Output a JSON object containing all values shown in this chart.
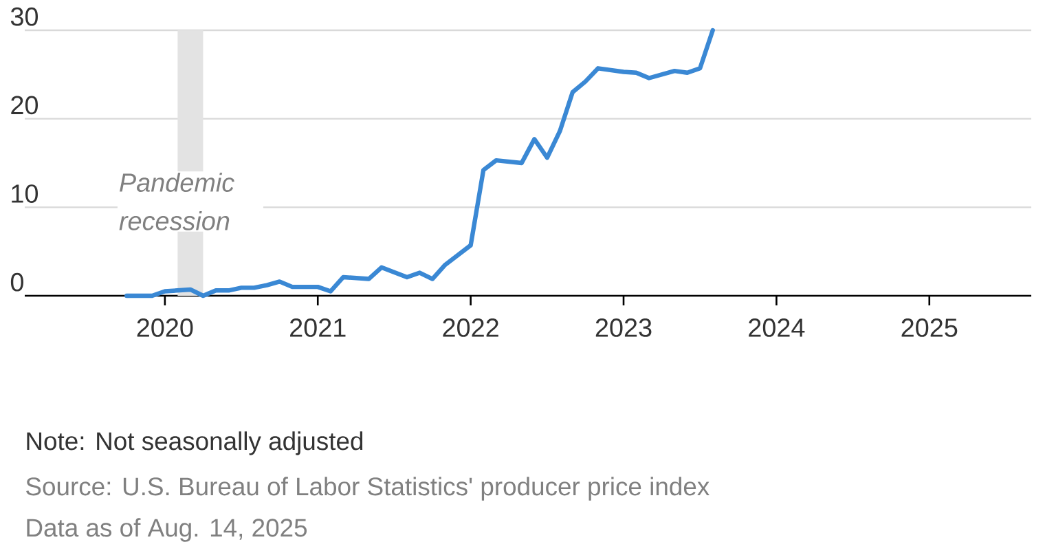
{
  "chart_data": {
    "type": "line",
    "color": "#3a88d4",
    "x": [
      "2019-10",
      "2019-12",
      "2020-01",
      "2020-03",
      "2020-04",
      "2020-05",
      "2020-06",
      "2020-07",
      "2020-08",
      "2020-09",
      "2020-10",
      "2020-11",
      "2021-01",
      "2021-02",
      "2021-03",
      "2021-05",
      "2021-06",
      "2021-08",
      "2021-09",
      "2021-10",
      "2021-11",
      "2022-01",
      "2022-02",
      "2022-03",
      "2022-05",
      "2022-06",
      "2022-07",
      "2022-08",
      "2022-09",
      "2022-10",
      "2022-11",
      "2023-01",
      "2023-02",
      "2023-03",
      "2023-05",
      "2023-06",
      "2023-07",
      "2023-08"
    ],
    "values": [
      0,
      0,
      0.5,
      0.7,
      0,
      0.6,
      0.6,
      0.9,
      0.9,
      1.2,
      1.6,
      1.0,
      1.0,
      0.5,
      2.1,
      1.9,
      3.2,
      2.1,
      2.6,
      1.9,
      3.5,
      5.7,
      14.2,
      15.3,
      15.0,
      17.7,
      15.6,
      18.6,
      23.0,
      24.2,
      25.7,
      25.3,
      25.2,
      24.6,
      25.4,
      25.2,
      25.7,
      30
    ],
    "xlim": [
      "2019-02",
      "2025-09"
    ],
    "ylim": [
      0,
      30
    ],
    "xticks": [
      "2020",
      "2021",
      "2022",
      "2023",
      "2024",
      "2025"
    ],
    "yticks": [
      0,
      10,
      20,
      30
    ],
    "grid": "y",
    "bands": [
      {
        "axis": "x",
        "from": "2020-02",
        "to": "2020-04",
        "label": "Pandemic recession",
        "color": "#e3e3e3"
      }
    ],
    "annotations": [
      "Note: Not seasonally adjusted",
      "Source: U.S. Bureau of Labor Statistics' producer price index",
      "Data as of Aug. 14, 2025"
    ]
  }
}
